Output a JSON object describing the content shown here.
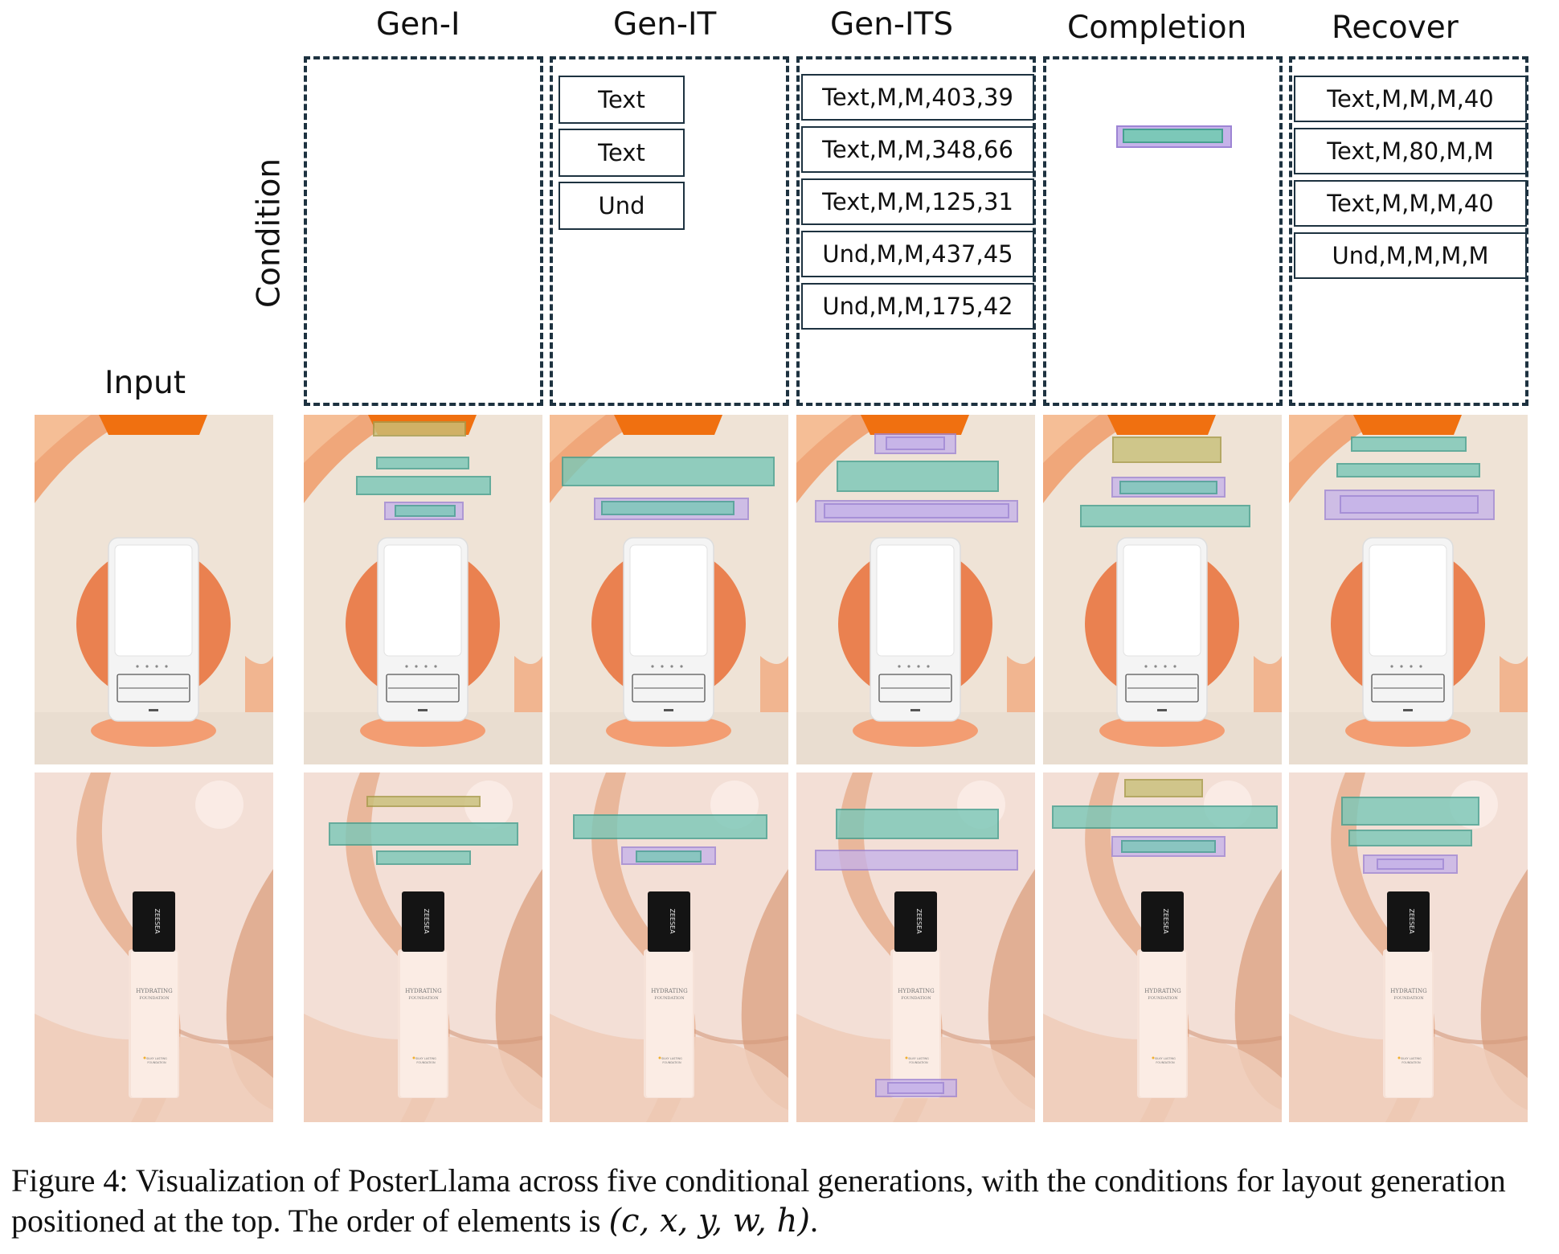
{
  "headers": {
    "input": "Input",
    "condition": "Condition",
    "columns": [
      "Gen-I",
      "Gen-IT",
      "Gen-ITS",
      "Completion",
      "Recover"
    ]
  },
  "conditions": {
    "gen_i": [],
    "gen_it": [
      "Text",
      "Text",
      "Und"
    ],
    "gen_its": [
      "Text,M,M,403,39",
      "Text,M,M,348,66",
      "Text,M,M,125,31",
      "Und,M,M,437,45",
      "Und,M,M,175,42"
    ],
    "completion": [],
    "recover": [
      "Text,M,M,M,40",
      "Text,M,80,M,M",
      "Text,M,M,M,40",
      "Und,M,M,M,M"
    ]
  },
  "colors": {
    "text_box": "#7cc8b8",
    "text_box_border": "#46a090",
    "und_box": "#c6b3ea",
    "und_box_border": "#9d84d4",
    "logo_box": "#c9c07a",
    "logo_box_border": "#a89c4c",
    "dashed_border": "#1d3240"
  },
  "product_text": {
    "brand": "ZEESEA",
    "product_line1": "HYDRATING",
    "product_line2": "FOUNDATION",
    "product_small1": "SILKY LASTING",
    "product_small2": "FOUNDATION"
  },
  "caption": {
    "prefix": "Figure 4: Visualization of PosterLlama across five conditional generations, with the conditions for layout generation positioned at the top. The order of elements is ",
    "formula": "(c, x, y, w, h)",
    "suffix": "."
  }
}
